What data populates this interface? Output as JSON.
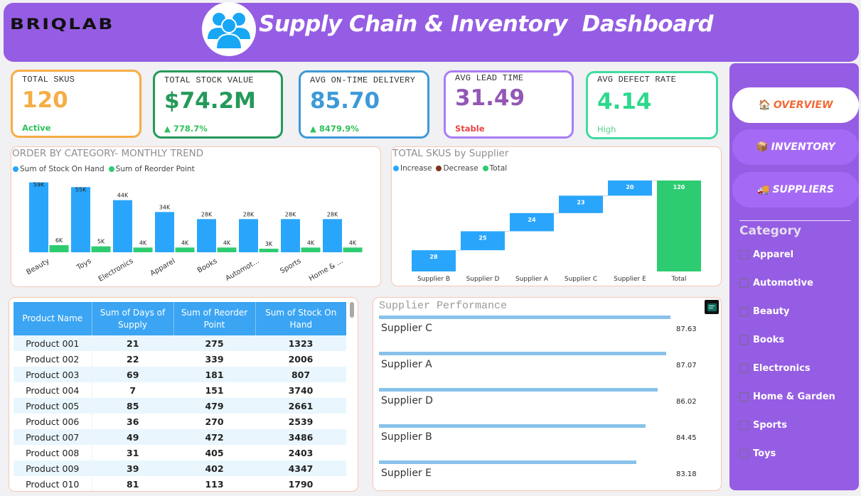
{
  "header": {
    "brand": "BRIQLAB",
    "title": "Supply Chain & Inventory  Dashboard",
    "icon": "people-group-icon"
  },
  "kpis": [
    {
      "label": "TOTAL SKUS",
      "value": "120",
      "sub": "Active",
      "color": "#f5ad45",
      "value_color": "#f5ad45",
      "sub_color": "#2fc25b"
    },
    {
      "label": "TOTAL STOCK VALUE",
      "value": "$74.2M",
      "sub": "▲ 778.7%",
      "color": "#24995a",
      "value_color": "#24995a",
      "sub_color": "#2fc25b"
    },
    {
      "label": "AVG ON-TIME DELIVERY",
      "value": "85.70",
      "sub": "▲ 8479.9%",
      "color": "#3d9ad9",
      "value_color": "#3d9ad9",
      "sub_color": "#2fc25b"
    },
    {
      "label": "AVG LEAD TIME",
      "value": "31.49",
      "sub": "Stable",
      "color": "#a97cf5",
      "value_color": "#9357b5",
      "sub_color": "#ea4545"
    },
    {
      "label": "AVG DEFECT RATE",
      "value": "4.14",
      "sub": "High",
      "color": "#3edba0",
      "value_color": "#2cd98c",
      "sub_color": "#58d28a"
    }
  ],
  "nav": [
    {
      "label": "OVERVIEW",
      "icon": "🏠",
      "icon_name": "house-icon",
      "active": true
    },
    {
      "label": "INVENTORY",
      "icon": "📦",
      "icon_name": "package-icon",
      "active": false
    },
    {
      "label": "SUPPLIERS",
      "icon": "🚚",
      "icon_name": "truck-icon",
      "active": false
    }
  ],
  "category_filter": {
    "title": "Category",
    "items": [
      "Apparel",
      "Automotive",
      "Beauty",
      "Books",
      "Electronics",
      "Home & Garden",
      "Sports",
      "Toys"
    ]
  },
  "table": {
    "columns": [
      "Product Name",
      "Sum of Days of Supply",
      "Sum of Reorder Point",
      "Sum of Stock On Hand"
    ],
    "rows": [
      [
        "Product 001",
        "21",
        "275",
        "1323"
      ],
      [
        "Product 002",
        "22",
        "339",
        "2006"
      ],
      [
        "Product 003",
        "69",
        "181",
        "807"
      ],
      [
        "Product 004",
        "7",
        "151",
        "3740"
      ],
      [
        "Product 005",
        "85",
        "479",
        "2661"
      ],
      [
        "Product 006",
        "36",
        "270",
        "2539"
      ],
      [
        "Product 007",
        "49",
        "472",
        "3486"
      ],
      [
        "Product 008",
        "31",
        "405",
        "2403"
      ],
      [
        "Product 009",
        "39",
        "402",
        "4347"
      ],
      [
        "Product 010",
        "81",
        "113",
        "1790"
      ]
    ]
  },
  "supplier_performance": {
    "title": "Supplier Performance",
    "max": 100,
    "items": [
      {
        "name": "Supplier C",
        "value": 87.63,
        "label": "87.63"
      },
      {
        "name": "Supplier A",
        "value": 87.07,
        "label": "87.07"
      },
      {
        "name": "Supplier D",
        "value": 86.02,
        "label": "86.02"
      },
      {
        "name": "Supplier B",
        "value": 84.45,
        "label": "84.45"
      },
      {
        "name": "Supplier E",
        "value": 83.18,
        "label": "83.18"
      }
    ]
  },
  "chart_data": [
    {
      "type": "bar",
      "title": "ORDER BY CATEGORY- MONTHLY TREND",
      "categories": [
        "Beauty",
        "Toys",
        "Electronics",
        "Apparel",
        "Books",
        "Automot...",
        "Sports",
        "Home & ..."
      ],
      "series": [
        {
          "name": "Sum of Stock On Hand",
          "color": "#29a6fb",
          "values": [
            59000,
            55000,
            44000,
            34000,
            28000,
            28000,
            28000,
            28000
          ],
          "labels": [
            "59K",
            "55K",
            "44K",
            "34K",
            "28K",
            "28K",
            "28K",
            "28K"
          ]
        },
        {
          "name": "Sum of Reorder Point",
          "color": "#2ecc71",
          "values": [
            6000,
            5000,
            4000,
            4000,
            4000,
            3000,
            4000,
            4000
          ],
          "labels": [
            "6K",
            "5K",
            "4K",
            "4K",
            "4K",
            "3K",
            "4K",
            "4K"
          ]
        }
      ],
      "xlabel": "",
      "ylabel": "",
      "ylim": [
        0,
        60000
      ],
      "grid": false,
      "legend": "top-left"
    },
    {
      "type": "waterfall",
      "title": "TOTAL SKUS by Supplier",
      "legend_items": [
        {
          "name": "Increase",
          "color": "#29a6fb"
        },
        {
          "name": "Decrease",
          "color": "#7b3419"
        },
        {
          "name": "Total",
          "color": "#2ecc71"
        }
      ],
      "categories": [
        "Supplier B",
        "Supplier D",
        "Supplier A",
        "Supplier C",
        "Supplier E",
        "Total"
      ],
      "values": [
        28,
        25,
        24,
        23,
        20,
        120
      ],
      "is_total": [
        false,
        false,
        false,
        false,
        false,
        true
      ],
      "ylim": [
        0,
        120
      ],
      "grid": false,
      "legend": "top-left"
    }
  ]
}
